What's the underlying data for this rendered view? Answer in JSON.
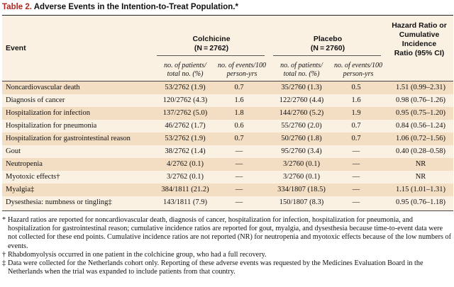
{
  "table": {
    "label": "Table 2.",
    "title": "Adverse Events in the Intention-to-Treat Population.*",
    "columns": {
      "event": "Event",
      "colchicine": "Colchicine",
      "colchicine_n": "(N = 2762)",
      "placebo": "Placebo",
      "placebo_n": "(N = 2760)",
      "hr_line1": "Hazard Ratio or",
      "hr_line2": "Cumulative Incidence",
      "hr_line3": "Ratio (95% CI)",
      "sub_patients_line1": "no. of patients/",
      "sub_patients_line2": "total no. (%)",
      "sub_events_line1": "no. of events/100",
      "sub_events_line2": "person-yrs"
    },
    "rows": [
      {
        "event": "Noncardiovascular death",
        "c_patients": "53/2762 (1.9)",
        "c_events": "0.7",
        "p_patients": "35/2760 (1.3)",
        "p_events": "0.5",
        "ratio": "1.51 (0.99–2.31)"
      },
      {
        "event": "Diagnosis of cancer",
        "c_patients": "120/2762 (4.3)",
        "c_events": "1.6",
        "p_patients": "122/2760 (4.4)",
        "p_events": "1.6",
        "ratio": "0.98 (0.76–1.26)"
      },
      {
        "event": "Hospitalization for infection",
        "c_patients": "137/2762 (5.0)",
        "c_events": "1.8",
        "p_patients": "144/2760 (5.2)",
        "p_events": "1.9",
        "ratio": "0.95 (0.75–1.20)"
      },
      {
        "event": "Hospitalization for pneumonia",
        "c_patients": "46/2762 (1.7)",
        "c_events": "0.6",
        "p_patients": "55/2760 (2.0)",
        "p_events": "0.7",
        "ratio": "0.84 (0.56–1.24)"
      },
      {
        "event": "Hospitalization for gastrointestinal reason",
        "c_patients": "53/2762 (1.9)",
        "c_events": "0.7",
        "p_patients": "50/2760 (1.8)",
        "p_events": "0.7",
        "ratio": "1.06 (0.72–1.56)"
      },
      {
        "event": "Gout",
        "c_patients": "38/2762 (1.4)",
        "c_events": "—",
        "p_patients": "95/2760 (3.4)",
        "p_events": "—",
        "ratio": "0.40 (0.28–0.58)"
      },
      {
        "event": "Neutropenia",
        "c_patients": "4/2762 (0.1)",
        "c_events": "—",
        "p_patients": "3/2760 (0.1)",
        "p_events": "—",
        "ratio": "NR"
      },
      {
        "event": "Myotoxic effects†",
        "c_patients": "3/2762 (0.1)",
        "c_events": "—",
        "p_patients": "3/2760 (0.1)",
        "p_events": "—",
        "ratio": "NR"
      },
      {
        "event": "Myalgia‡",
        "c_patients": "384/1811 (21.2)",
        "c_events": "—",
        "p_patients": "334/1807 (18.5)",
        "p_events": "—",
        "ratio": "1.15 (1.01–1.31)"
      },
      {
        "event": "Dysesthesia: numbness or tingling‡",
        "c_patients": "143/1811 (7.9)",
        "c_events": "—",
        "p_patients": "150/1807 (8.3)",
        "p_events": "—",
        "ratio": "0.95 (0.76–1.18)"
      }
    ]
  },
  "footnotes": [
    {
      "mark": "*",
      "text": "Hazard ratios are reported for noncardiovascular death, diagnosis of cancer, hospitalization for infection, hospitalization for pneumonia, and hospitalization for gastrointestinal reason; cumulative incidence ratios are reported for gout, myalgia, and dysesthesia because time-to-event data were not collected for these end points. Cumulative incidence ratios are not reported (NR) for neutropenia and myotoxic effects because of the low numbers of events."
    },
    {
      "mark": "†",
      "text": "Rhabdomyolysis occurred in one patient in the colchicine group, who had a full recovery."
    },
    {
      "mark": "‡",
      "text": "Data were collected for the Netherlands cohort only. Reporting of these adverse events was requested by the Medicines Evaluation Board in the Netherlands when the trial was expanded to include patients from that country."
    }
  ]
}
